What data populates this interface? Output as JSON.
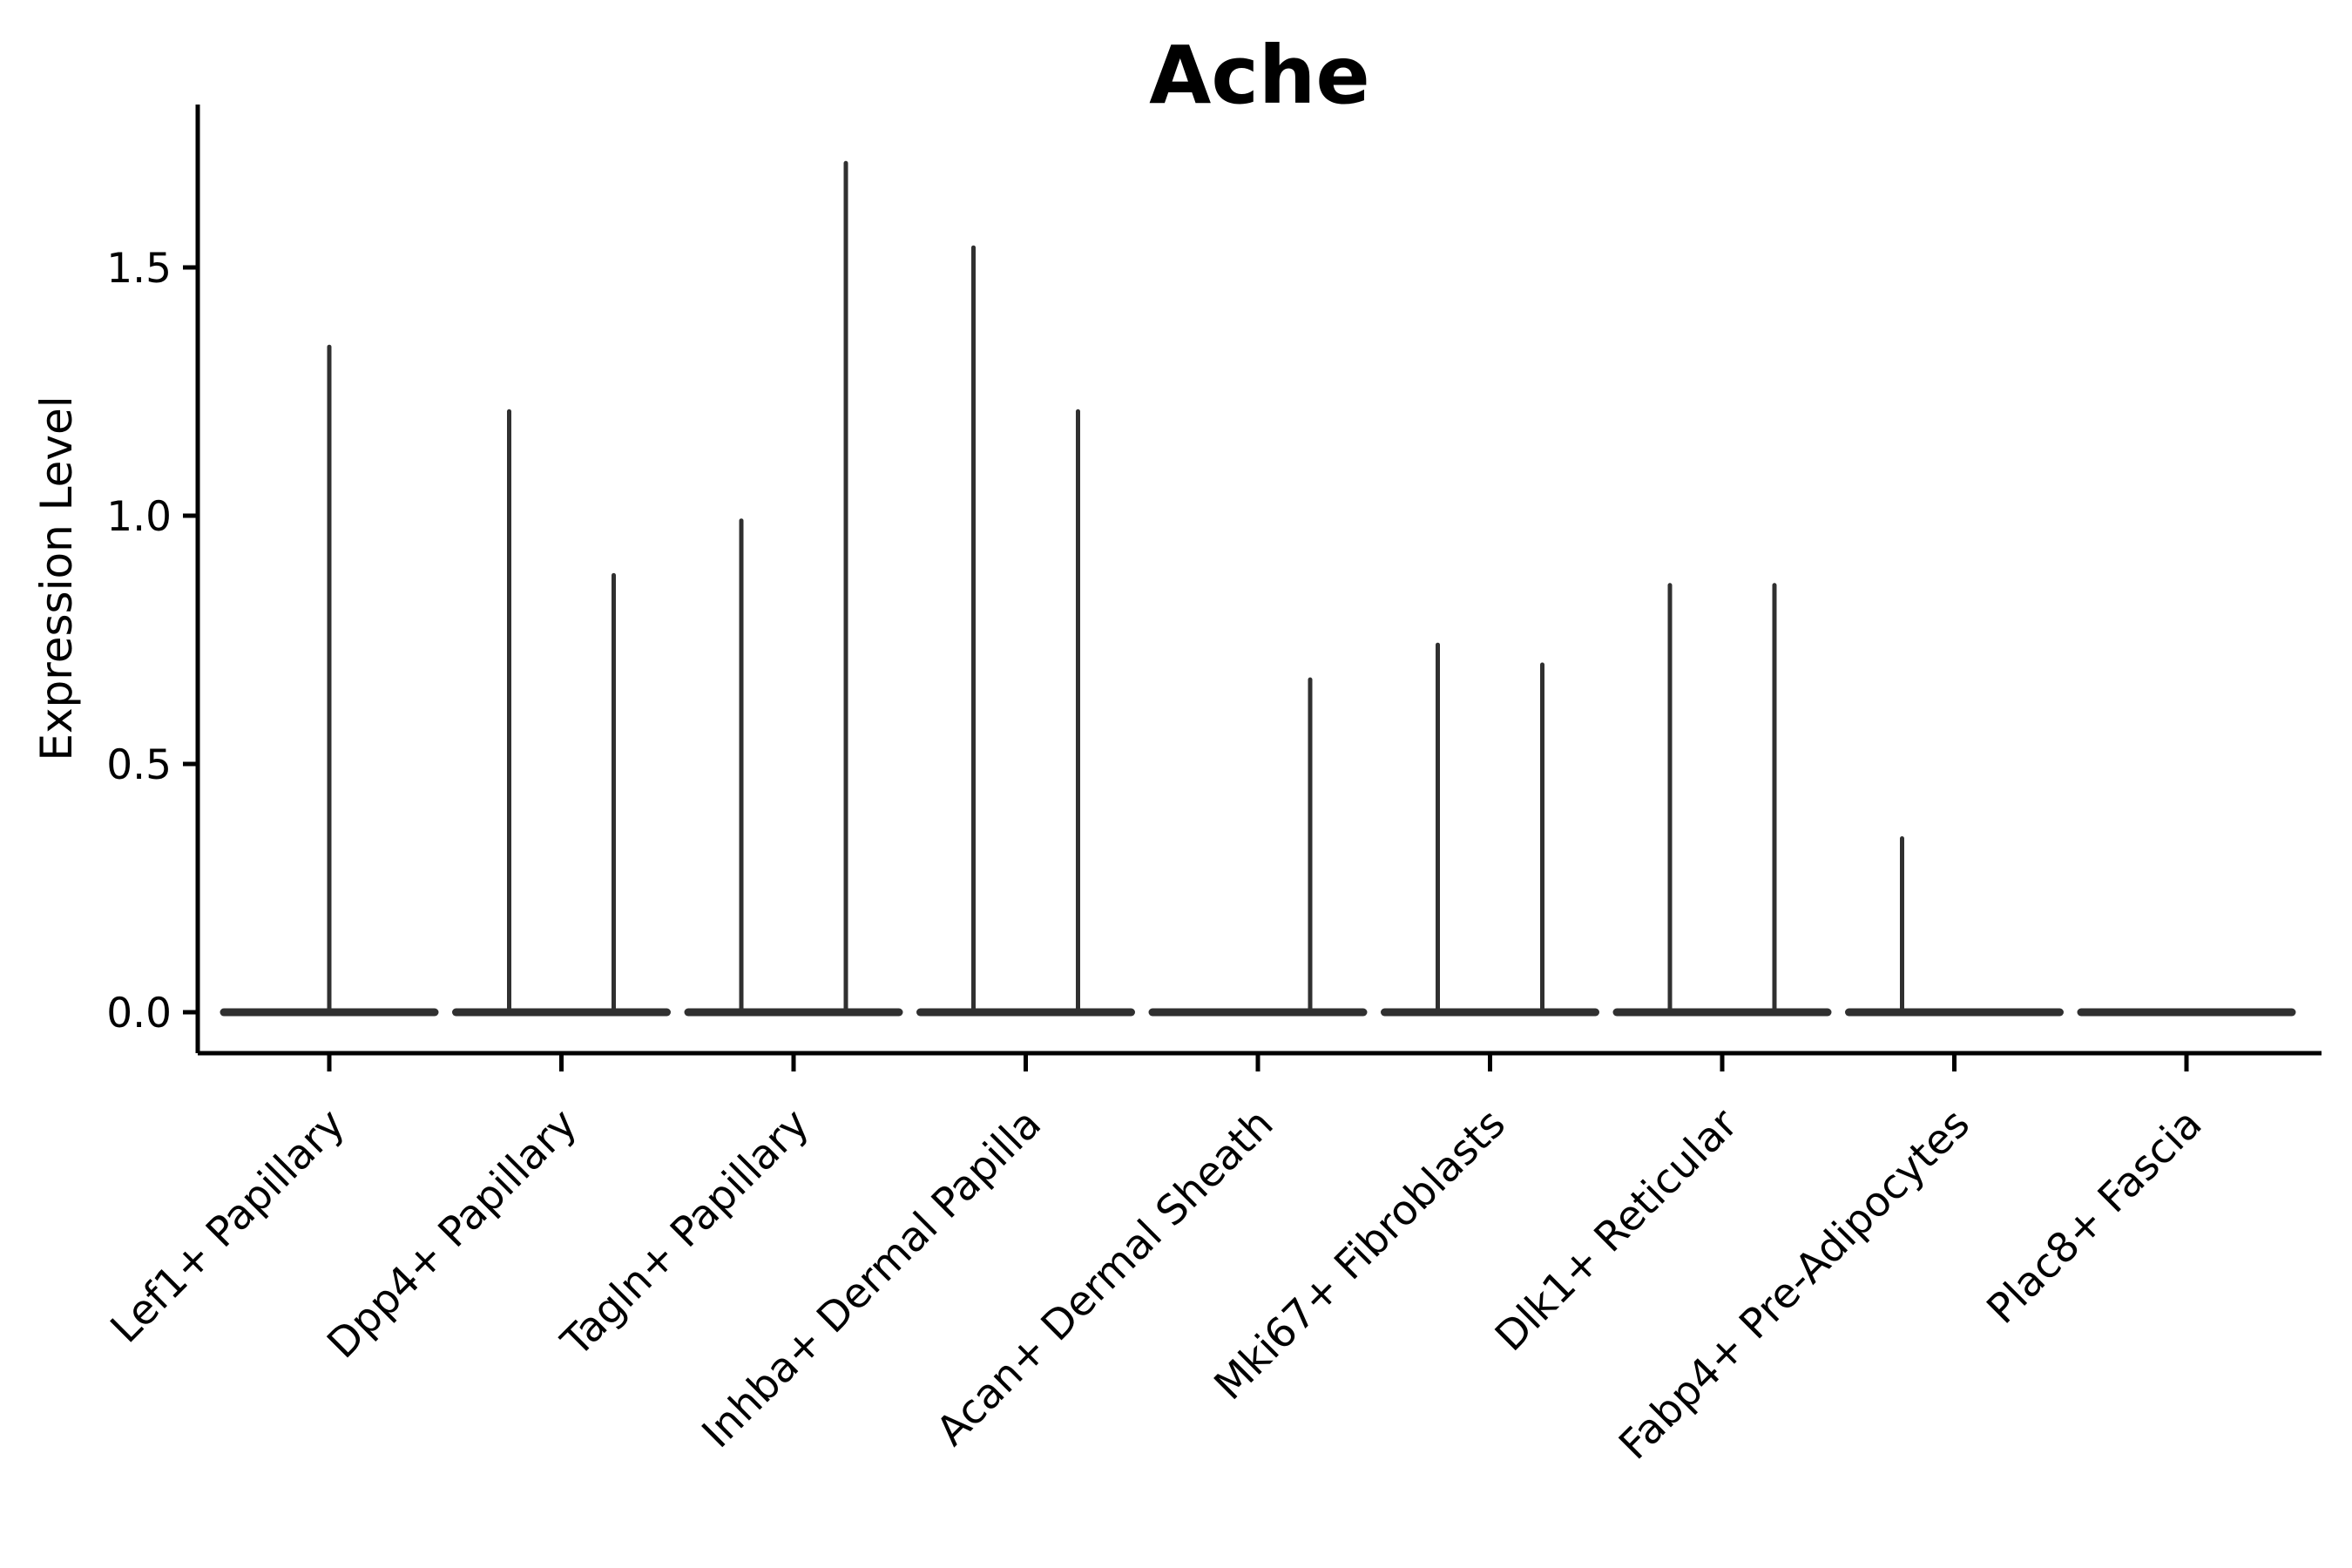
{
  "figure": {
    "title": "Ache",
    "background_color": "#ffffff",
    "axis_color": "#000000",
    "violin_color": "#303030"
  },
  "chart_data": {
    "type": "violin",
    "title": "Ache",
    "xlabel": "",
    "ylabel": "Expression Level",
    "ylim": [
      -0.08,
      1.83
    ],
    "yticks": [
      0.0,
      0.5,
      1.0,
      1.5
    ],
    "grid": false,
    "legend": "none",
    "baseline_value": 0.0,
    "categories": [
      "Lef1+ Papillary",
      "Dpp4+ Papillary",
      "Tagln+ Papillary",
      "Inhba+ Dermal Papilla",
      "Acan+ Dermal Sheath",
      "Mki67+ Fibroblasts",
      "Dlk1+ Reticular",
      "Fabp4+ Pre-Adipocytes",
      "Plac8+ Fascia"
    ],
    "violins": [
      {
        "category": "Lef1+ Papillary",
        "spikes": [
          {
            "value": 1.34,
            "position": "center"
          }
        ]
      },
      {
        "category": "Dpp4+ Papillary",
        "spikes": [
          {
            "value": 1.21,
            "position": "left"
          },
          {
            "value": 0.88,
            "position": "right"
          }
        ]
      },
      {
        "category": "Tagln+ Papillary",
        "spikes": [
          {
            "value": 0.99,
            "position": "left"
          },
          {
            "value": 1.71,
            "position": "right"
          }
        ]
      },
      {
        "category": "Inhba+ Dermal Papilla",
        "spikes": [
          {
            "value": 1.54,
            "position": "left"
          },
          {
            "value": 1.21,
            "position": "right"
          }
        ]
      },
      {
        "category": "Acan+ Dermal Sheath",
        "spikes": [
          {
            "value": 0.67,
            "position": "right"
          }
        ]
      },
      {
        "category": "Mki67+ Fibroblasts",
        "spikes": [
          {
            "value": 0.74,
            "position": "left"
          },
          {
            "value": 0.7,
            "position": "right"
          }
        ]
      },
      {
        "category": "Dlk1+ Reticular",
        "spikes": [
          {
            "value": 0.86,
            "position": "left"
          },
          {
            "value": 0.86,
            "position": "right"
          }
        ]
      },
      {
        "category": "Fabp4+ Pre-Adipocytes",
        "spikes": [
          {
            "value": 0.35,
            "position": "left"
          }
        ]
      },
      {
        "category": "Plac8+ Fascia",
        "spikes": []
      }
    ]
  }
}
